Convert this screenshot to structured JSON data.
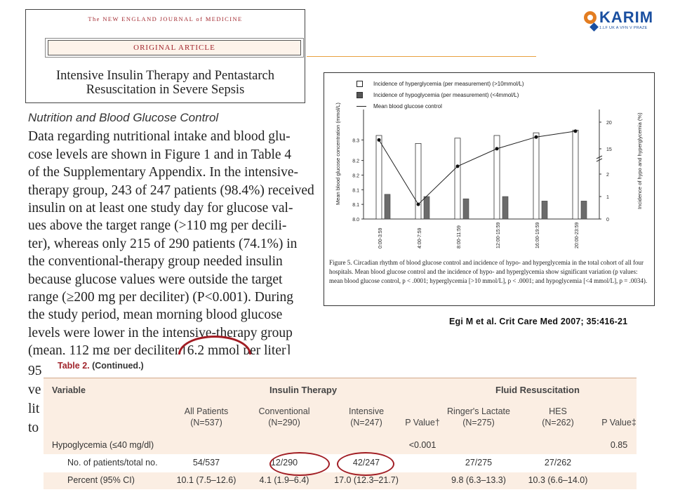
{
  "logo": {
    "text": "KARIM",
    "sub": "1.LF UK A VFN V PRAZE"
  },
  "nejm": {
    "journal": "The NEW ENGLAND JOURNAL of MEDICINE",
    "section": "ORIGINAL ARTICLE",
    "title_line1": "Intensive Insulin Therapy and Pentastarch",
    "title_line2": "Resuscitation in Severe Sepsis"
  },
  "body": {
    "heading": "Nutrition and Blood Glucose Control",
    "lines": [
      "Data regarding nutritional intake and blood glu-",
      "cose levels are shown in Figure 1 and in Table 4",
      "of the Supplementary Appendix. In the intensive-",
      "therapy group, 243 of 247 patients (98.4%) received",
      "insulin on at least one study day for glucose val-",
      "ues above the target range (>110 mg per decili-",
      "ter), whereas only 215 of 290 patients (74.1%) in",
      "the conventional-therapy group needed insulin",
      "because glucose values were outside the target",
      "range (≥200 mg per deciliter) (P<0.001). During",
      "the study period, mean morning blood glucose",
      "levels were lower in the intensive-therapy group",
      "(mean, 112 mg per deciliter [6.2 mmol per liter]"
    ],
    "fragments": [
      "95",
      "ve",
      "lit",
      "to"
    ]
  },
  "figure": {
    "legend": [
      "Incidence of hyperglycemia (per measurement) (>10mmol/L)",
      "Incidence of hypoglycemia (per measurement) (<4mmol/L)",
      "Mean blood glucose control"
    ],
    "left_axis_label": "Mean blood glucose concentration (mmol/L)",
    "right_axis_label": "Incidence of hypo and hyperglycemia (%)",
    "caption": "Figure 5. Circadian rhythm of blood glucose control and incidence of hypo- and hyperglycemia in the total cohort of all four hospitals. Mean blood glucose control and the incidence of hypo- and hyperglycemia show significant variation (p values: mean blood glucose control, p < .0001; hyperglycemia [>10 mmol/L], p < .0001; and hypoglycemia [<4 mmol/L], p = .0034).",
    "colors": {
      "open_bar": "#ffffff",
      "dark_bar": "#6b6b6b",
      "line": "#222222"
    }
  },
  "chart_data": {
    "type": "bar",
    "title": "",
    "categories": [
      "0:00-3:59",
      "4:00-7:59",
      "8:00-11:59",
      "12:00-15:59",
      "16:00-19:59",
      "20:00-23:59"
    ],
    "left_ticks": [
      "8.0",
      "8.1",
      "8.1",
      "8.2",
      "8.2",
      "8.3"
    ],
    "right_ticks": [
      "0",
      "1",
      "2",
      "15",
      "20"
    ],
    "ylim_left": [
      8.0,
      8.35
    ],
    "ylim_right": [
      0,
      20
    ],
    "series": [
      {
        "name": "Incidence of hyperglycemia (per measurement) (>10mmol/L)",
        "axis": "right",
        "kind": "open_bar",
        "values": [
          17.5,
          16.0,
          17.0,
          17.5,
          18.0,
          18.5
        ]
      },
      {
        "name": "Incidence of hypoglycemia (per measurement) (<4mmol/L)",
        "axis": "right",
        "kind": "dark_bar",
        "values": [
          1.1,
          1.0,
          0.9,
          1.0,
          0.8,
          0.8
        ]
      },
      {
        "name": "Mean blood glucose control",
        "axis": "left",
        "kind": "line",
        "values": [
          8.27,
          8.05,
          8.18,
          8.24,
          8.28,
          8.3
        ]
      }
    ],
    "grid": false
  },
  "citation": "Egi M et al. Crit Care Med 2007; 35:416-21",
  "table": {
    "title_prefix": "Table 2.",
    "title_suffix": "(Continued.)",
    "group_insulin": "Insulin Therapy",
    "group_fluid": "Fluid Resuscitation",
    "variable_label": "Variable",
    "columns": [
      {
        "line1": "All Patients",
        "line2": "(N=537)"
      },
      {
        "line1": "Conventional",
        "line2": "(N=290)"
      },
      {
        "line1": "Intensive",
        "line2": "(N=247)"
      },
      {
        "line1": "",
        "line2": "P Value†"
      },
      {
        "line1": "Ringer's Lactate",
        "line2": "(N=275)"
      },
      {
        "line1": "HES",
        "line2": "(N=262)"
      },
      {
        "line1": "",
        "line2": "P Value‡"
      }
    ],
    "rows": [
      {
        "label": "Hypoglycemia (≤40 mg/dl)",
        "cells": [
          "",
          "",
          "",
          "<0.001",
          "",
          "",
          "0.85"
        ]
      },
      {
        "label": "No. of patients/total no.",
        "cells": [
          "54/537",
          "12/290",
          "42/247",
          "",
          "27/275",
          "27/262",
          ""
        ]
      },
      {
        "label": "Percent (95% CI)",
        "cells": [
          "10.1 (7.5–12.6)",
          "4.1 (1.9–6.4)",
          "17.0 (12.3–21.7)",
          "",
          "9.8 (6.3–13.3)",
          "10.3 (6.6–14.0)",
          ""
        ]
      }
    ]
  }
}
